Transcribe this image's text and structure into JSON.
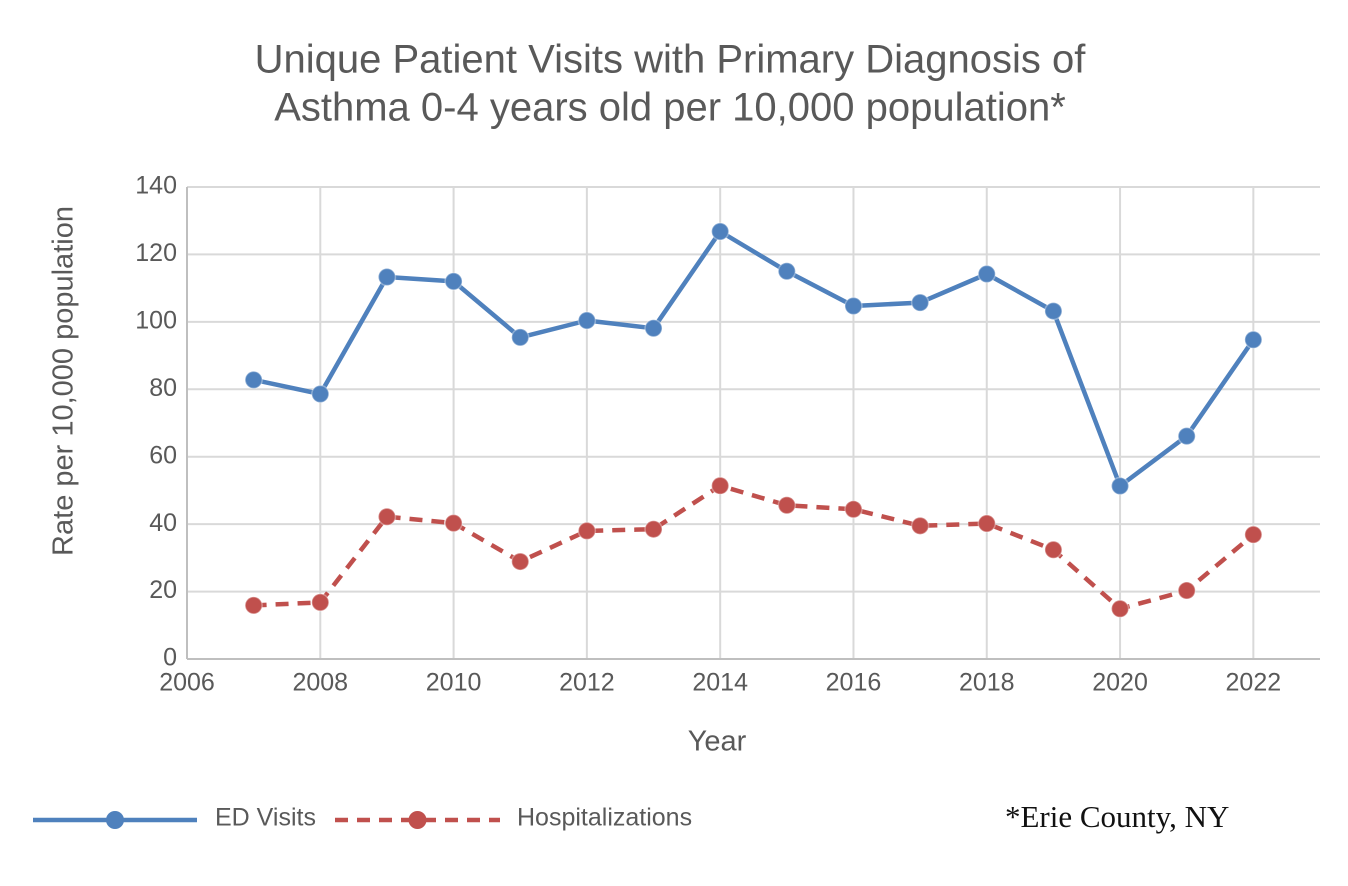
{
  "chart_data": {
    "type": "line",
    "title": [
      "Unique Patient Visits with Primary Diagnosis of",
      "Asthma 0-4 years old per 10,000 population*"
    ],
    "xlabel": "Year",
    "ylabel": "Rate per 10,000 population",
    "xlim": [
      2006,
      2023
    ],
    "ylim": [
      0,
      140
    ],
    "xticks": [
      "2006",
      "2008",
      "2010",
      "2012",
      "2014",
      "2016",
      "2018",
      "2020",
      "2022"
    ],
    "yticks": [
      "0",
      "20",
      "40",
      "60",
      "80",
      "100",
      "120",
      "140"
    ],
    "grid": true,
    "legend_position": "bottom-left",
    "series": [
      {
        "name": "ED Visits",
        "color": "#4f81bd",
        "line_style": "solid",
        "x": [
          2007,
          2008,
          2009,
          2010,
          2011,
          2012,
          2013,
          2014,
          2015,
          2016,
          2017,
          2018,
          2019,
          2020,
          2021,
          2022
        ],
        "y": [
          82.8,
          78.6,
          113.3,
          112,
          95.4,
          100.4,
          98.1,
          126.8,
          115,
          104.7,
          105.7,
          114.2,
          103.2,
          51.3,
          66.1,
          94.7
        ]
      },
      {
        "name": "Hospitalizations",
        "color": "#c0504d",
        "line_style": "dashed",
        "x": [
          2007,
          2008,
          2009,
          2010,
          2011,
          2012,
          2013,
          2014,
          2015,
          2016,
          2017,
          2018,
          2019,
          2020,
          2021,
          2022
        ],
        "y": [
          15.9,
          16.8,
          42.2,
          40.3,
          28.9,
          38,
          38.5,
          51.4,
          45.6,
          44.4,
          39.5,
          40.2,
          32.4,
          14.9,
          20.3,
          36.9
        ]
      }
    ]
  },
  "note": "*Erie County, NY"
}
